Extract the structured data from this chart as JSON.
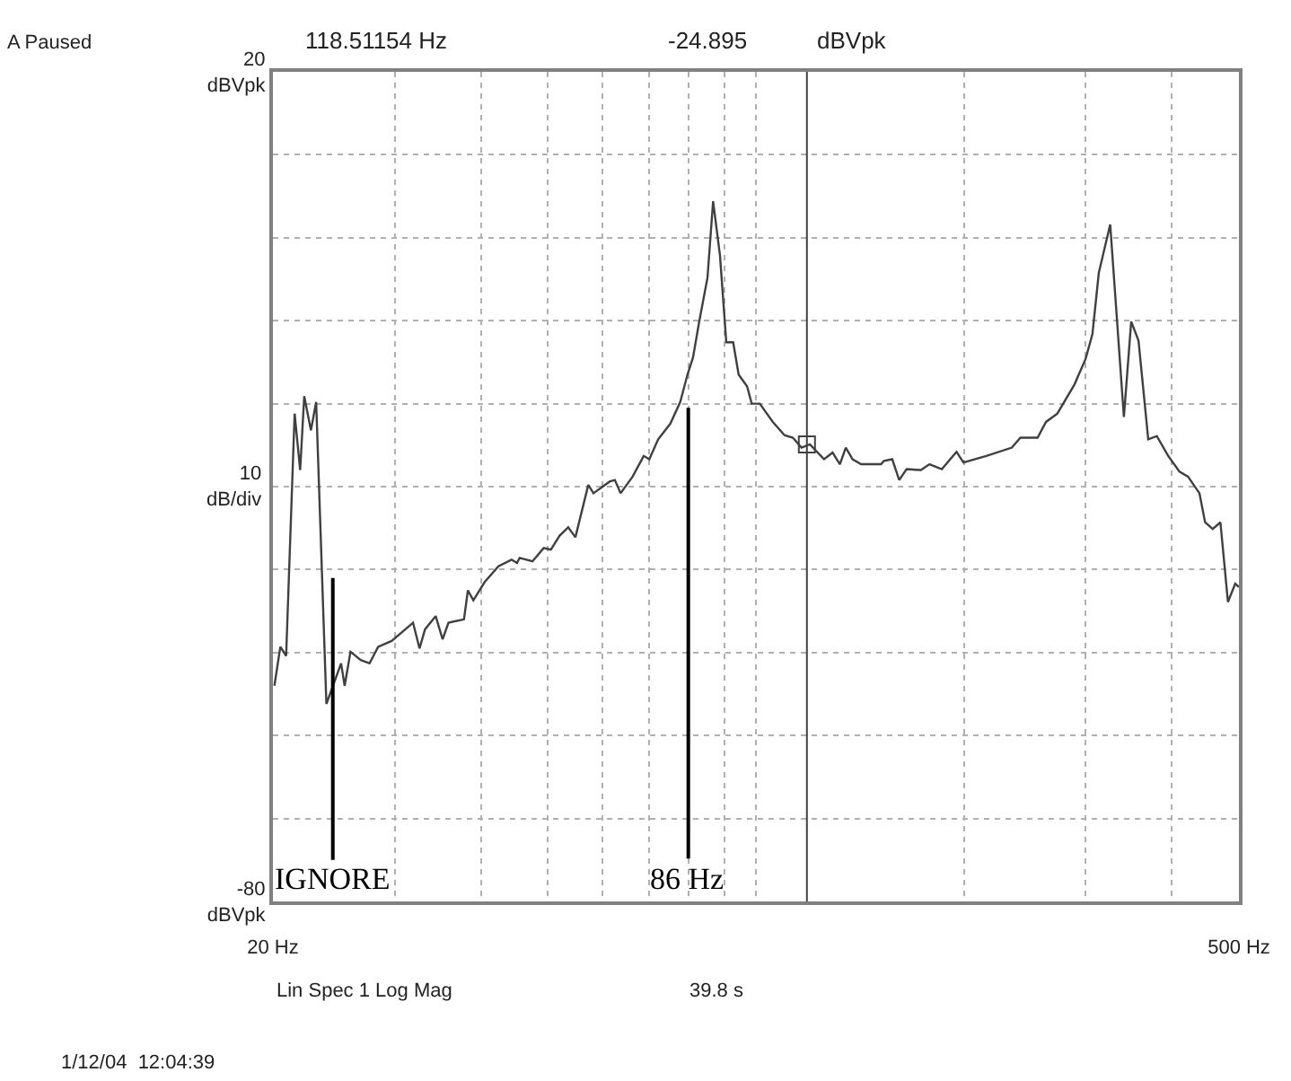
{
  "chart_data": {
    "type": "line",
    "log": "x",
    "grid": true,
    "marker": "none",
    "line_style": "solid",
    "xlim": [
      20,
      500
    ],
    "ylim": [
      -80,
      20
    ],
    "xticks": [
      {
        "value": 20,
        "label": "20 Hz"
      },
      {
        "value": 30,
        "label": null
      },
      {
        "value": 40,
        "label": null
      },
      {
        "value": 50,
        "label": null
      },
      {
        "value": 60,
        "label": null
      },
      {
        "value": 70,
        "label": null
      },
      {
        "value": 80,
        "label": null
      },
      {
        "value": 90,
        "label": null
      },
      {
        "value": 100,
        "label": null
      },
      {
        "value": 200,
        "label": null
      },
      {
        "value": 300,
        "label": null
      },
      {
        "value": 400,
        "label": null
      },
      {
        "value": 500,
        "label": "500 Hz"
      }
    ],
    "yticks": [
      {
        "value": 20,
        "label": "20\ndBVpk"
      },
      {
        "value": 10,
        "label": null
      },
      {
        "value": 0,
        "label": null
      },
      {
        "value": -10,
        "label": null
      },
      {
        "value": -20,
        "label": null
      },
      {
        "value": -30,
        "label": null
      },
      {
        "value": -40,
        "label": null
      },
      {
        "value": -50,
        "label": null
      },
      {
        "value": -60,
        "label": null
      },
      {
        "value": -70,
        "label": null
      },
      {
        "value": -80,
        "label": "-80\ndBVpk"
      }
    ],
    "series": [
      {
        "color": "#404040",
        "x": [
          20.1,
          20.5,
          20.9,
          21.5,
          21.9,
          22.2,
          22.7,
          23.1,
          23.9,
          25.1,
          25.4,
          25.9,
          26.8,
          27.6,
          28.4,
          29.7,
          31.9,
          32.6,
          33.2,
          34.4,
          35.2,
          35.9,
          37.8,
          38.3,
          39.0,
          40.5,
          42.4,
          44.3,
          45.1,
          45.5,
          47.5,
          49.3,
          50.5,
          52.0,
          53.5,
          54.8,
          57.2,
          58.2,
          61.4,
          62.5,
          63.7,
          66.3,
          68.8,
          70.1,
          72.2,
          75.2,
          77.7,
          79.6,
          81.1,
          82.7,
          85.1,
          86.7,
          88.7,
          90.6,
          92.7,
          94.4,
          97.1,
          98.6,
          101.3,
          105.8,
          110.0,
          113.1,
          116.4,
          119.7,
          125.5,
          129.1,
          132.3,
          134.9,
          138.0,
          142.0,
          151.7,
          153.2,
          157.5,
          161.2,
          165.2,
          173.3,
          178.3,
          185.8,
          195.1,
          199.7,
          215.4,
          234.6,
          241.4,
          255.6,
          262.9,
          273.0,
          289.0,
          300.0,
          306.9,
          313.5,
          325.6,
          340.8,
          349.2,
          357.8,
          369.6,
          380.3,
          395.1,
          410.2,
          422.0,
          438.4,
          446.7,
          458.1,
          470.1,
          482.0,
          493.9,
          500
        ],
        "values": [
          -54.0,
          -49.3,
          -50.4,
          -21.2,
          -28.0,
          -19.1,
          -23.2,
          -19.8,
          -56.2,
          -51.3,
          -54.0,
          -49.9,
          -50.9,
          -51.3,
          -49.3,
          -48.6,
          -46.4,
          -49.5,
          -47.2,
          -45.6,
          -48.4,
          -46.4,
          -46.0,
          -42.5,
          -43.7,
          -41.5,
          -39.6,
          -38.8,
          -39.2,
          -38.6,
          -39.0,
          -37.4,
          -37.6,
          -35.9,
          -34.9,
          -36.1,
          -29.8,
          -30.8,
          -29.4,
          -29.2,
          -30.8,
          -28.8,
          -26.3,
          -26.7,
          -24.3,
          -22.4,
          -19.8,
          -16.5,
          -14.4,
          -10.3,
          -4.8,
          4.4,
          -2.1,
          -12.6,
          -12.6,
          -16.5,
          -17.9,
          -20.0,
          -20.0,
          -22.2,
          -23.8,
          -24.1,
          -25.3,
          -24.9,
          -26.7,
          -25.9,
          -27.3,
          -25.3,
          -26.7,
          -27.3,
          -27.3,
          -26.9,
          -26.7,
          -29.2,
          -27.9,
          -28.0,
          -27.3,
          -27.9,
          -25.8,
          -27.1,
          -26.3,
          -25.3,
          -24.1,
          -24.1,
          -22.2,
          -21.2,
          -17.7,
          -14.6,
          -11.6,
          -4.2,
          1.6,
          -21.6,
          -10.1,
          -12.4,
          -24.3,
          -23.9,
          -26.3,
          -28.2,
          -28.8,
          -30.8,
          -34.3,
          -35.1,
          -34.3,
          -43.9,
          -41.7,
          -42.1
        ]
      },
      {
        "type": "scatter",
        "marker": "square",
        "color": "#404040",
        "x": [
          118.51154
        ],
        "values": [
          -24.9
        ]
      }
    ],
    "ref_lines": [
      {
        "axis": "x",
        "value": 118.51154,
        "color": "#404040"
      }
    ],
    "annotations": [
      "A Paused",
      "118.51154 Hz",
      "-24.895",
      "dBVpk",
      "Lin Spec 1 Log Mag",
      "39.8 s",
      "1/12/04  12:04:39",
      "IGNORE",
      "86 Hz"
    ],
    "ylabel": "10\ndB/div"
  }
}
